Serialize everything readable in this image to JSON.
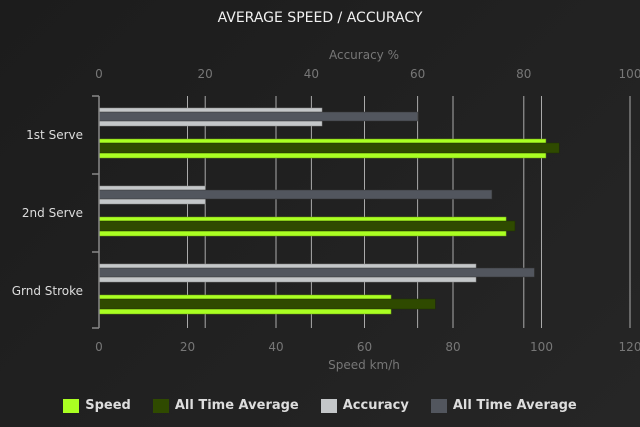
{
  "chart_data": {
    "type": "bar",
    "orientation": "horizontal",
    "title": "AVERAGE SPEED / ACCURACY",
    "categories": [
      "1st Serve",
      "2nd Serve",
      "Grnd Stroke"
    ],
    "top_axis": {
      "label": "Accuracy %",
      "range": [
        0,
        100
      ],
      "ticks": [
        "0",
        "20",
        "40",
        "60",
        "80",
        "100"
      ]
    },
    "bottom_axis": {
      "label": "Speed km/h",
      "range": [
        0,
        120
      ],
      "ticks": [
        "0",
        "20",
        "40",
        "60",
        "80",
        "100",
        "120"
      ]
    },
    "grid": true,
    "legend_position": "bottom",
    "series": [
      {
        "name": "Speed",
        "axis": "bottom",
        "values": [
          101,
          92,
          66
        ],
        "color": "#aaff22"
      },
      {
        "name": "All Time Average",
        "axis": "bottom",
        "values": [
          104,
          94,
          76
        ],
        "color": "#2f4a00"
      },
      {
        "name": "Accuracy",
        "axis": "top",
        "values": [
          42,
          20,
          71
        ],
        "color": "#c4c7c9"
      },
      {
        "name": "All Time Average",
        "axis": "top",
        "values": [
          60,
          74,
          82
        ],
        "color": "#52565e"
      }
    ]
  }
}
